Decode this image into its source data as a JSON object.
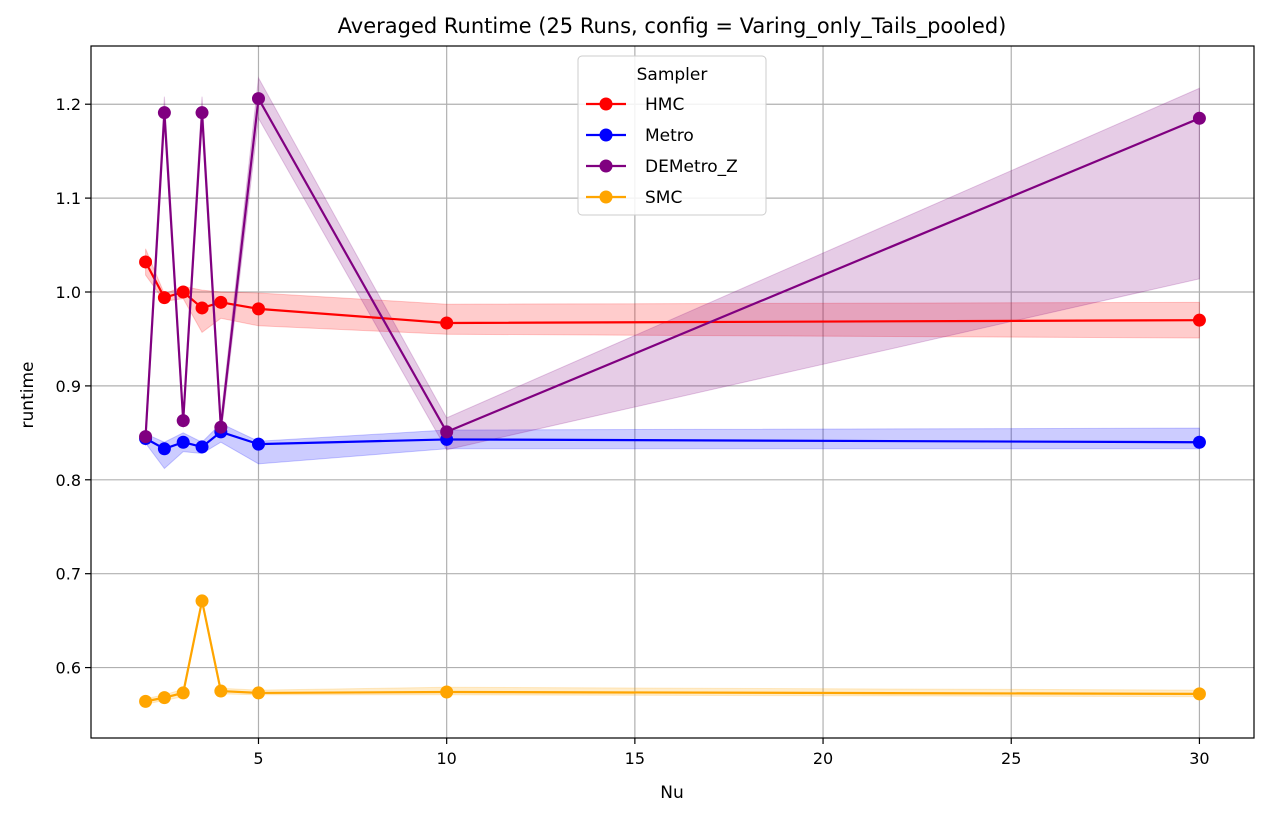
{
  "chart_data": {
    "type": "line",
    "title": "Averaged Runtime (25 Runs, config = Varing_only_Tails_pooled)",
    "xlabel": "Nu",
    "ylabel": "runtime",
    "xlim": [
      0.55,
      31.45
    ],
    "ylim": [
      0.525,
      1.262
    ],
    "xticks": [
      5,
      10,
      15,
      20,
      25,
      30
    ],
    "yticks": [
      0.6,
      0.7,
      0.8,
      0.9,
      1.0,
      1.1,
      1.2
    ],
    "grid": true,
    "legend": {
      "title": "Sampler",
      "placement": "upper center"
    },
    "x": [
      2,
      2.5,
      3,
      3.5,
      4,
      5,
      10,
      30
    ],
    "series": [
      {
        "name": "HMC",
        "color": "#ff0000",
        "values": [
          1.032,
          0.994,
          1.0,
          0.983,
          0.989,
          0.982,
          0.967,
          0.97
        ],
        "lower": [
          1.018,
          0.99,
          0.993,
          0.957,
          0.972,
          0.964,
          0.955,
          0.951
        ],
        "upper": [
          1.046,
          0.998,
          1.006,
          1.002,
          1.0,
          0.999,
          0.987,
          0.989
        ]
      },
      {
        "name": "Metro",
        "color": "#0000ff",
        "values": [
          0.844,
          0.833,
          0.84,
          0.835,
          0.851,
          0.838,
          0.843,
          0.84
        ],
        "lower": [
          0.839,
          0.812,
          0.83,
          0.828,
          0.84,
          0.817,
          0.833,
          0.833
        ],
        "upper": [
          0.849,
          0.84,
          0.85,
          0.84,
          0.86,
          0.841,
          0.853,
          0.855
        ]
      },
      {
        "name": "DEMetro_Z",
        "color": "#800080",
        "values": [
          0.846,
          1.191,
          0.863,
          1.191,
          0.856,
          1.206,
          0.851,
          1.185
        ],
        "lower": [
          0.836,
          1.178,
          0.855,
          1.178,
          0.846,
          1.185,
          0.832,
          1.014
        ],
        "upper": [
          0.856,
          1.208,
          0.873,
          1.208,
          0.866,
          1.228,
          0.866,
          1.217
        ]
      },
      {
        "name": "SMC",
        "color": "#ffa500",
        "values": [
          0.564,
          0.568,
          0.573,
          0.671,
          0.575,
          0.573,
          0.574,
          0.572
        ],
        "lower": [
          0.561,
          0.565,
          0.569,
          0.668,
          0.572,
          0.571,
          0.571,
          0.569
        ],
        "upper": [
          0.567,
          0.571,
          0.577,
          0.674,
          0.578,
          0.576,
          0.579,
          0.576
        ]
      }
    ]
  }
}
